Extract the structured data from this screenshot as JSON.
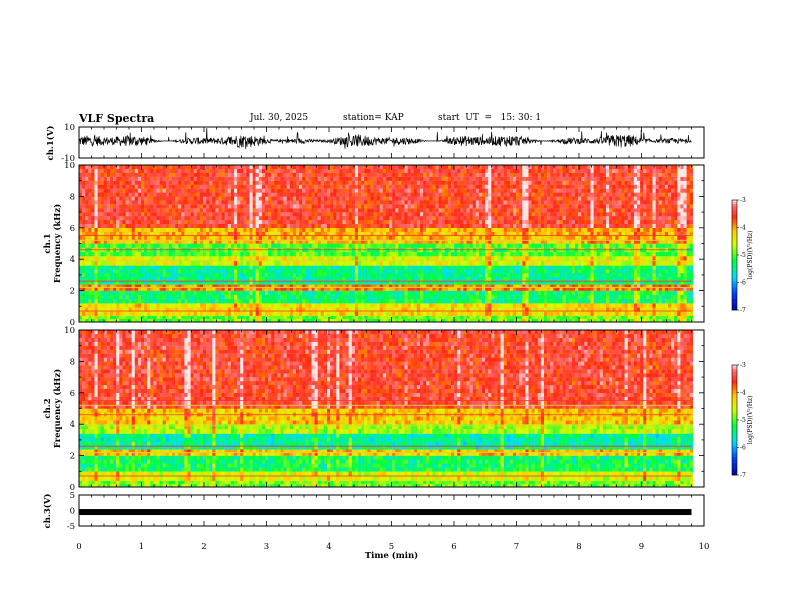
{
  "header": {
    "title": "VLF Spectra",
    "date": "Jul. 30, 2025",
    "station": "station= KAP",
    "start": "start  UT  =   15: 30: 1"
  },
  "chart_data": [
    {
      "id": "ch1-waveform",
      "type": "line",
      "ylabel": "ch.1(V)",
      "ylim": [
        -10,
        10
      ],
      "yticks": [
        "10",
        "-10"
      ],
      "x_range_min": [
        0,
        9.8
      ],
      "description_level": "noisy signal mostly within -5 to +8 V"
    },
    {
      "id": "ch1-spectrogram",
      "type": "heatmap",
      "ylabel_top": "ch.1",
      "ylabel": "Frequency  (kHz)",
      "ylim": [
        0,
        10
      ],
      "yticks": [
        "0",
        "2",
        "4",
        "6",
        "8",
        "10"
      ],
      "x_range_min": [
        0,
        9.8
      ],
      "colorbar": {
        "label": "log(PSD)(V²/Hz)",
        "range": [
          -7,
          -3
        ],
        "ticks": [
          "-3",
          "-4",
          "-5",
          "-6",
          "-7"
        ]
      },
      "bands": [
        {
          "from_khz": 0,
          "to_khz": 0.4,
          "level": -5.0
        },
        {
          "from_khz": 0.4,
          "to_khz": 1.2,
          "level": -4.4
        },
        {
          "from_khz": 1.2,
          "to_khz": 2.0,
          "level": -5.4
        },
        {
          "from_khz": 2.0,
          "to_khz": 2.4,
          "level": -4.0
        },
        {
          "from_khz": 2.4,
          "to_khz": 3.6,
          "level": -5.5
        },
        {
          "from_khz": 3.6,
          "to_khz": 4.2,
          "level": -4.6
        },
        {
          "from_khz": 4.2,
          "to_khz": 5.0,
          "level": -5.1
        },
        {
          "from_khz": 5.0,
          "to_khz": 6.0,
          "level": -4.2
        },
        {
          "from_khz": 6.0,
          "to_khz": 10.0,
          "level": -3.6
        }
      ]
    },
    {
      "id": "ch2-spectrogram",
      "type": "heatmap",
      "ylabel_top": "ch.2",
      "ylabel": "Frequency  (kHz)",
      "ylim": [
        0,
        10
      ],
      "yticks": [
        "0",
        "2",
        "4",
        "6",
        "8",
        "10"
      ],
      "x_range_min": [
        0,
        9.8
      ],
      "colorbar": {
        "label": "log(PSD)(V²/Hz)",
        "range": [
          -7,
          -3
        ],
        "ticks": [
          "-3",
          "-4",
          "-5",
          "-6",
          "-7"
        ]
      },
      "bands": [
        {
          "from_khz": 0,
          "to_khz": 0.4,
          "level": -5.0
        },
        {
          "from_khz": 0.4,
          "to_khz": 1.0,
          "level": -4.6
        },
        {
          "from_khz": 1.0,
          "to_khz": 2.0,
          "level": -5.4
        },
        {
          "from_khz": 2.0,
          "to_khz": 2.4,
          "level": -4.3
        },
        {
          "from_khz": 2.4,
          "to_khz": 3.4,
          "level": -5.6
        },
        {
          "from_khz": 3.4,
          "to_khz": 4.0,
          "level": -4.8
        },
        {
          "from_khz": 4.0,
          "to_khz": 5.0,
          "level": -4.3
        },
        {
          "from_khz": 5.0,
          "to_khz": 10.0,
          "level": -3.6
        }
      ]
    },
    {
      "id": "ch3-waveform",
      "type": "line",
      "ylabel": "ch.3(V)",
      "ylim": [
        -5,
        5
      ],
      "yticks": [
        "5",
        "0",
        "-5"
      ],
      "x_range_min": [
        0,
        9.8
      ],
      "level_v": -0.5
    }
  ],
  "xaxis": {
    "label": "Time  (min)",
    "range": [
      0,
      10
    ],
    "ticks": [
      "0",
      "1",
      "2",
      "3",
      "4",
      "5",
      "6",
      "7",
      "8",
      "9",
      "10"
    ]
  }
}
